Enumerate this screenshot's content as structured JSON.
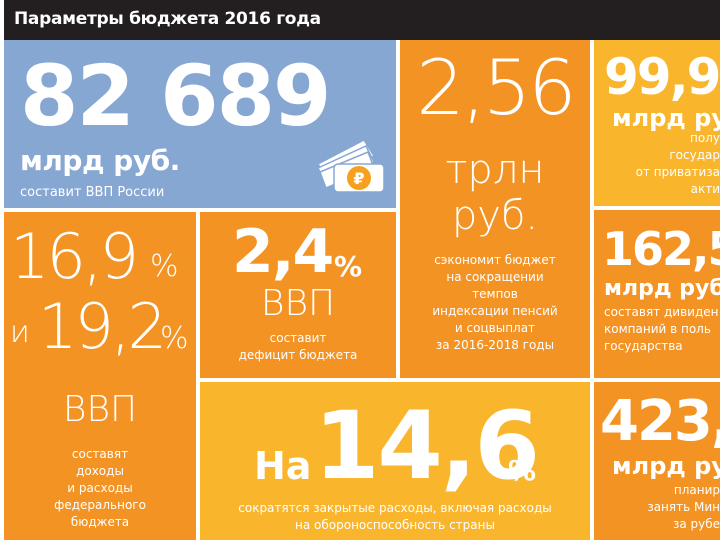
{
  "header": {
    "title": "Параметры бюджета 2016 года"
  },
  "colors": {
    "header_bg": "#231f20",
    "blue": "#87a7d3",
    "orange": "#f39324",
    "yellow": "#f9b52c",
    "icon_rub": "#f7a01e"
  },
  "tiles": {
    "gdp": {
      "number": "82 689",
      "unit": "млрд руб.",
      "caption": "составит ВВП России",
      "icon": "ruble-banknotes-icon"
    },
    "savings": {
      "number": "2,56",
      "unit_line1": "трлн",
      "unit_line2": "руб.",
      "caption": [
        "сэкономит бюджет",
        "на сокращении",
        "темпов",
        "индексации пенсий",
        "и соцвыплат",
        "за 2016-2018 годы"
      ]
    },
    "privatization": {
      "number": "99,9",
      "unit": "млрд ру",
      "caption": [
        "полу",
        "государ",
        "от приватиза",
        "акти"
      ]
    },
    "income": {
      "number1": "16,9",
      "pct1": "%",
      "conj": "и",
      "number2": "19,2",
      "pct2": "%",
      "unit": "ВВП",
      "caption": [
        "составят",
        "доходы",
        "и расходы",
        "федерального",
        "бюджета"
      ]
    },
    "deficit": {
      "number": "2,4",
      "pct": "%",
      "unit": "ВВП",
      "caption": [
        "составит",
        "дефицит бюджета"
      ]
    },
    "dividends": {
      "number": "162,5",
      "unit": "млрд руб",
      "caption": [
        "составят дивиден",
        "компаний в поль",
        "государства"
      ]
    },
    "closed": {
      "prefix": "На",
      "number": "14,6",
      "pct": "%",
      "caption": [
        "сократятся закрытые расходы, включая расходы",
        "на обороноспособность страны"
      ]
    },
    "borrowing": {
      "number": "423,",
      "unit": "млрд руб",
      "caption": [
        "планир",
        "занять Мин",
        "за рубе"
      ]
    }
  }
}
